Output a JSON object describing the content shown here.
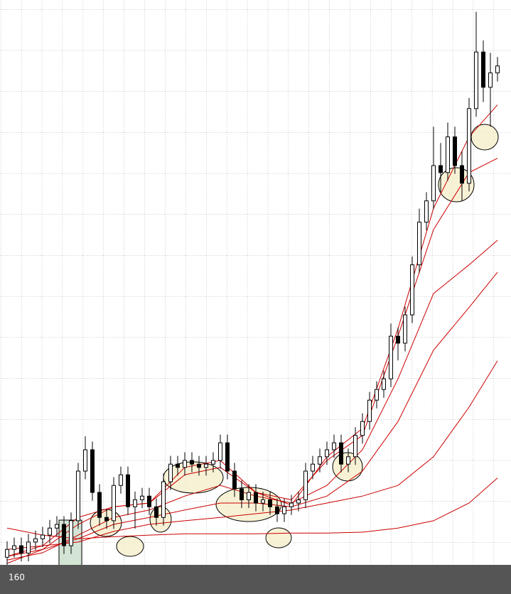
{
  "chart_data": {
    "type": "candlestick",
    "x": [
      0,
      1,
      2,
      3,
      4,
      5,
      6,
      7,
      8,
      9,
      10,
      11,
      12,
      13,
      14,
      15,
      16,
      17,
      18,
      19,
      20,
      21,
      22,
      23,
      24,
      25,
      26,
      27,
      28,
      29,
      30,
      31,
      32,
      33,
      34,
      35,
      36,
      37,
      38,
      39,
      40,
      41,
      42,
      43,
      44,
      45,
      46,
      47,
      48,
      49,
      50,
      51,
      52,
      53,
      54,
      55,
      56,
      57,
      58,
      59,
      60,
      61,
      62,
      63,
      64,
      65,
      66,
      67,
      68,
      69
    ],
    "open": [
      165,
      166.9,
      167.8,
      166,
      168.7,
      169.5,
      170.4,
      172.1,
      173,
      167.8,
      173.9,
      186,
      191.2,
      180.8,
      174.7,
      173.9,
      182.5,
      185.1,
      177.3,
      179,
      179.9,
      177.3,
      174.7,
      183.4,
      187.7,
      186.9,
      188.6,
      187.7,
      186.9,
      187.7,
      188.6,
      192.9,
      186,
      181.7,
      179,
      180.8,
      178.2,
      179,
      177.3,
      175.6,
      177.3,
      178.2,
      179,
      186,
      187.7,
      189.5,
      191.2,
      192.9,
      187.7,
      189.5,
      194.7,
      198.1,
      203.3,
      205.9,
      208.5,
      218.9,
      217.2,
      224.1,
      236.3,
      246.7,
      251.9,
      260.5,
      258.8,
      267.5,
      260.5,
      256.2,
      274.4,
      288.2,
      279.6,
      283.1
    ],
    "high": [
      168.9,
      169.8,
      169.8,
      170.7,
      171.5,
      172.4,
      174.1,
      175,
      175,
      175.9,
      188,
      194.5,
      193.2,
      182.8,
      176.7,
      184.5,
      187.1,
      187.1,
      181,
      181.9,
      181.9,
      179.3,
      185.4,
      189.7,
      189.7,
      190.6,
      190.6,
      189.7,
      189.7,
      190.6,
      194.9,
      194.9,
      188,
      183.7,
      182.8,
      182.8,
      181,
      181,
      179.3,
      179.3,
      180.2,
      181,
      188,
      189.7,
      191.5,
      193.2,
      194.9,
      194.9,
      191.5,
      196.7,
      200.1,
      205.3,
      207.9,
      210.5,
      222,
      221,
      226.1,
      238.3,
      250,
      254,
      270,
      266,
      271,
      270,
      264,
      277,
      298,
      291,
      288,
      287
    ],
    "low": [
      163,
      164.9,
      164,
      164,
      166.7,
      167.5,
      168.4,
      170.1,
      165.8,
      165.8,
      171.9,
      184,
      178.8,
      172.7,
      171.9,
      171.9,
      180.5,
      175.3,
      172,
      177,
      175.3,
      172.7,
      172.7,
      181.4,
      184.9,
      184.9,
      185.7,
      184.9,
      184.9,
      185.7,
      186.6,
      184,
      179.7,
      177,
      177,
      176.2,
      176.2,
      175.3,
      173.6,
      173.6,
      175.3,
      176.2,
      177,
      184,
      185.7,
      187.5,
      189.2,
      185.7,
      185.7,
      187.5,
      192.7,
      196.1,
      201.3,
      203.9,
      206.5,
      213,
      215.2,
      222.1,
      234.3,
      244.7,
      249.9,
      254,
      256.8,
      258.5,
      252,
      254.2,
      272.4,
      276,
      270,
      281
    ],
    "close": [
      166.9,
      167.8,
      166,
      168.7,
      169.5,
      170.4,
      172.1,
      173,
      167.8,
      173.9,
      186,
      191.2,
      180.8,
      174.7,
      173.9,
      182.5,
      185.1,
      177.3,
      179,
      179.9,
      177.3,
      174.7,
      183.4,
      187.7,
      186.9,
      188.6,
      187.7,
      186.9,
      187.7,
      188.6,
      192.9,
      186,
      181.7,
      179,
      180.8,
      178.2,
      179,
      177.3,
      175.6,
      177.3,
      178.2,
      179,
      186,
      187.7,
      189.5,
      191.2,
      192.9,
      187.7,
      189.5,
      194.7,
      198.1,
      203.3,
      205.9,
      208.5,
      218.9,
      217.2,
      224.1,
      236.3,
      246.7,
      251.9,
      260.5,
      258.8,
      267.5,
      260.5,
      256.2,
      274.4,
      288.2,
      279.6,
      283.1,
      284.8
    ],
    "up_color": "#ffffff",
    "down_color": "#000000",
    "lines": [
      {
        "color": "#cc0000",
        "x": [
          0,
          5,
          10,
          15,
          20,
          25,
          30,
          35,
          40,
          45,
          50,
          55,
          60,
          65,
          69
        ],
        "values": [
          165.2,
          167.8,
          174.7,
          177.3,
          178.2,
          186.9,
          188.6,
          180.8,
          177.7,
          189.5,
          196.4,
          220.7,
          250.1,
          267.5,
          275.3
        ]
      },
      {
        "color": "#cc0000",
        "x": [
          0,
          5,
          10,
          15,
          20,
          25,
          30,
          35,
          40,
          45,
          50,
          55,
          60,
          65,
          69
        ],
        "values": [
          163.5,
          166.9,
          173,
          177.3,
          178.2,
          185.1,
          186.9,
          180.8,
          179,
          188.6,
          194.7,
          218.9,
          244.9,
          258.8,
          262.3
        ]
      },
      {
        "color": "#cc0000",
        "x": [
          0,
          5,
          10,
          15,
          20,
          25,
          30,
          35,
          40,
          45,
          50,
          55,
          60,
          65,
          69
        ],
        "values": [
          164.3,
          166.1,
          170.4,
          174.7,
          176.5,
          179.9,
          182.5,
          179.9,
          178.2,
          182.5,
          191.2,
          208.5,
          229.3,
          236.3,
          242.3
        ]
      },
      {
        "color": "#cc0000",
        "x": [
          0,
          5,
          10,
          15,
          20,
          25,
          30,
          35,
          40,
          45,
          50,
          55,
          60,
          65,
          69
        ],
        "values": [
          165.2,
          166.9,
          169.5,
          173,
          174.7,
          176.5,
          178.2,
          178.2,
          177.3,
          179.9,
          186,
          198.1,
          215.5,
          225.9,
          234.5
        ]
      },
      {
        "color": "#cc0000",
        "x": [
          0,
          5,
          10,
          15,
          20,
          25,
          30,
          35,
          40,
          45,
          50,
          55,
          60,
          65,
          69
        ],
        "values": [
          166.9,
          167.8,
          168.7,
          171.3,
          173,
          173.9,
          174.7,
          175.6,
          176.5,
          178.2,
          179.9,
          182.5,
          189.5,
          201.6,
          212.9
        ]
      },
      {
        "color": "#cc0000",
        "x": [
          0,
          5,
          10,
          15,
          20,
          25,
          30,
          35,
          40,
          45,
          50,
          55,
          60,
          65,
          69
        ],
        "values": [
          172.1,
          170.4,
          169.5,
          170,
          170.4,
          170.7,
          170.7,
          170.7,
          170.9,
          170.9,
          171.1,
          172.1,
          173.9,
          178.2,
          184.3
        ]
      }
    ],
    "xlim": [
      -1,
      70.9
    ],
    "ylim": [
      158.8,
      298.8
    ],
    "yticks": [
      160
    ]
  }
}
